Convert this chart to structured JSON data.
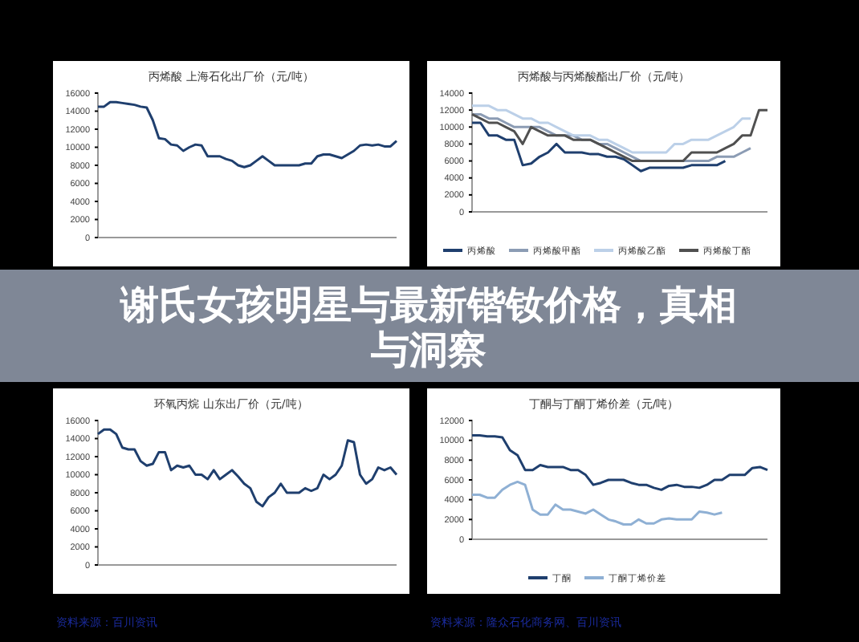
{
  "chart_data": [
    {
      "type": "line",
      "title": "丙烯酸 上海石化出厂价（元/吨）",
      "categories": [
        null,
        null,
        null,
        null,
        null,
        null,
        null,
        null,
        null,
        null,
        null,
        null,
        null,
        null,
        null,
        null,
        null,
        null,
        null,
        null,
        null,
        null,
        null,
        null,
        null,
        null,
        null,
        null,
        null,
        null,
        null,
        null,
        null,
        null,
        null,
        null,
        null,
        null,
        null,
        null,
        null,
        null,
        null,
        null,
        null,
        null,
        null,
        null,
        null,
        null
      ],
      "series": [
        {
          "color": "#1f3f6e",
          "values": [
            14500,
            14500,
            15000,
            15000,
            14900,
            14800,
            14700,
            14500,
            14400,
            13000,
            11000,
            10900,
            10300,
            10200,
            9600,
            10000,
            10300,
            10200,
            9000,
            9000,
            9000,
            8700,
            8500,
            8000,
            7800,
            8000,
            8500,
            9000,
            8500,
            8000,
            8000,
            8000,
            8000,
            8000,
            8200,
            8200,
            9000,
            9200,
            9200,
            9000,
            8800,
            9200,
            9600,
            10200,
            10300,
            10200,
            10300,
            10100,
            10100,
            10700
          ]
        }
      ],
      "ylim": [
        0,
        16000
      ],
      "yticks": [
        0,
        2000,
        4000,
        6000,
        8000,
        10000,
        12000,
        14000,
        16000
      ]
    },
    {
      "type": "line",
      "title": "丙烯酸与丙烯酸酯出厂价（元/吨）",
      "categories": [
        null,
        null,
        null,
        null,
        null,
        null,
        null,
        null,
        null,
        null,
        null,
        null,
        null,
        null,
        null,
        null,
        null,
        null,
        null,
        null,
        null,
        null,
        null,
        null,
        null,
        null,
        null,
        null,
        null,
        null,
        null,
        null,
        null,
        null,
        null,
        null
      ],
      "legend": "bottom",
      "series": [
        {
          "name": "丙烯酸",
          "color": "#1f3f6e",
          "values": [
            10500,
            10500,
            9000,
            9000,
            8500,
            8500,
            5500,
            5700,
            6500,
            7000,
            8000,
            7000,
            7000,
            7000,
            6800,
            6800,
            6500,
            6500,
            6200,
            5500,
            4800,
            5200,
            5200,
            5200,
            5200,
            5200,
            5500,
            5500,
            5500,
            5500,
            6000,
            null,
            null,
            null,
            null,
            null
          ]
        },
        {
          "name": "丙烯酸甲酯",
          "color": "#8c9cb4",
          "values": [
            11500,
            11500,
            11000,
            11000,
            10500,
            10000,
            10000,
            10000,
            10000,
            9500,
            9000,
            9000,
            9000,
            8500,
            8500,
            8000,
            8000,
            7500,
            7000,
            6500,
            6000,
            6000,
            6000,
            6000,
            6000,
            6000,
            6000,
            6000,
            6000,
            6500,
            6500,
            6500,
            7000,
            7500,
            null,
            null
          ]
        },
        {
          "name": "丙烯酸乙酯",
          "color": "#bcd0e8",
          "values": [
            12500,
            12500,
            12500,
            12000,
            12000,
            11500,
            11000,
            11000,
            10500,
            10500,
            10000,
            9500,
            9000,
            9000,
            9000,
            8500,
            8500,
            8000,
            7500,
            7000,
            7000,
            7000,
            7000,
            7000,
            8000,
            8000,
            8500,
            8500,
            8500,
            9000,
            9500,
            10000,
            11000,
            11000,
            null,
            null
          ]
        },
        {
          "name": "丙烯酸丁酯",
          "color": "#505050",
          "values": [
            11500,
            11000,
            10500,
            10500,
            10000,
            9500,
            8000,
            10000,
            9500,
            9000,
            9000,
            9000,
            8500,
            8500,
            8500,
            8000,
            7500,
            7000,
            6500,
            6000,
            6000,
            6000,
            6000,
            6000,
            6000,
            6000,
            7000,
            7000,
            7000,
            7000,
            7500,
            8000,
            9000,
            9000,
            12000,
            12000
          ]
        }
      ],
      "ylim": [
        0,
        14000
      ],
      "yticks": [
        0,
        2000,
        4000,
        6000,
        8000,
        10000,
        12000,
        14000
      ]
    },
    {
      "type": "line",
      "title": "环氧丙烷 山东出厂价（元/吨）",
      "categories": [
        null,
        null,
        null,
        null,
        null,
        null,
        null,
        null,
        null,
        null,
        null,
        null,
        null,
        null,
        null,
        null,
        null,
        null,
        null,
        null,
        null,
        null,
        null,
        null,
        null,
        null,
        null,
        null,
        null,
        null,
        null,
        null,
        null,
        null,
        null,
        null,
        null,
        null,
        null,
        null,
        null,
        null,
        null,
        null,
        null,
        null,
        null,
        null,
        null,
        null
      ],
      "series": [
        {
          "color": "#1f3f6e",
          "values": [
            14500,
            15000,
            15000,
            14500,
            13000,
            12800,
            12800,
            11500,
            11000,
            11200,
            12500,
            12500,
            10500,
            11000,
            10800,
            11000,
            10000,
            10000,
            9500,
            10500,
            9500,
            10000,
            10500,
            9800,
            9000,
            8500,
            7000,
            6500,
            7500,
            8000,
            9000,
            8000,
            8000,
            8000,
            8500,
            8200,
            8500,
            10000,
            9500,
            10000,
            11000,
            13800,
            13600,
            10000,
            9000,
            9500,
            10800,
            10500,
            10800,
            10000
          ]
        }
      ],
      "ylim": [
        0,
        16000
      ],
      "yticks": [
        0,
        2000,
        4000,
        6000,
        8000,
        10000,
        12000,
        14000,
        16000
      ],
      "annotations": [
        "资料来源：百川资讯"
      ]
    },
    {
      "type": "line",
      "title": "丁酮与丁酮丁烯价差（元/吨）",
      "categories": [
        null,
        null,
        null,
        null,
        null,
        null,
        null,
        null,
        null,
        null,
        null,
        null,
        null,
        null,
        null,
        null,
        null,
        null,
        null,
        null,
        null,
        null,
        null,
        null,
        null,
        null,
        null,
        null,
        null,
        null,
        null,
        null,
        null,
        null,
        null,
        null,
        null,
        null,
        null,
        null
      ],
      "legend": "bottom",
      "series": [
        {
          "name": "丁酮",
          "color": "#1f3f6e",
          "values": [
            10500,
            10500,
            10400,
            10400,
            10300,
            9000,
            8500,
            7000,
            7000,
            7500,
            7300,
            7300,
            7300,
            7000,
            7000,
            6500,
            5500,
            5700,
            6000,
            6000,
            6000,
            5700,
            5500,
            5500,
            5200,
            5000,
            5400,
            5500,
            5300,
            5300,
            5200,
            5500,
            6000,
            6000,
            6500,
            6500,
            6500,
            7200,
            7300,
            7000
          ]
        },
        {
          "name": "丁酮丁烯价差",
          "color": "#8fb0d4",
          "values": [
            4500,
            4500,
            4200,
            4200,
            5000,
            5500,
            5800,
            5500,
            3000,
            2500,
            2500,
            3500,
            3000,
            3000,
            2800,
            2600,
            3000,
            2500,
            2000,
            1800,
            1500,
            1500,
            2000,
            1600,
            1600,
            2000,
            2100,
            2000,
            2000,
            2000,
            2800,
            2700,
            2500,
            2700,
            null,
            null,
            null,
            null,
            null,
            null
          ]
        }
      ],
      "ylim": [
        0,
        12000
      ],
      "yticks": [
        0,
        2000,
        4000,
        6000,
        8000,
        10000,
        12000
      ],
      "annotations": [
        "资料来源：隆众石化商务网、百川资讯"
      ]
    },
    {
      "type": "other",
      "title": "谢氏女孩明星与最新锴钕价格，真相与洞察"
    }
  ]
}
